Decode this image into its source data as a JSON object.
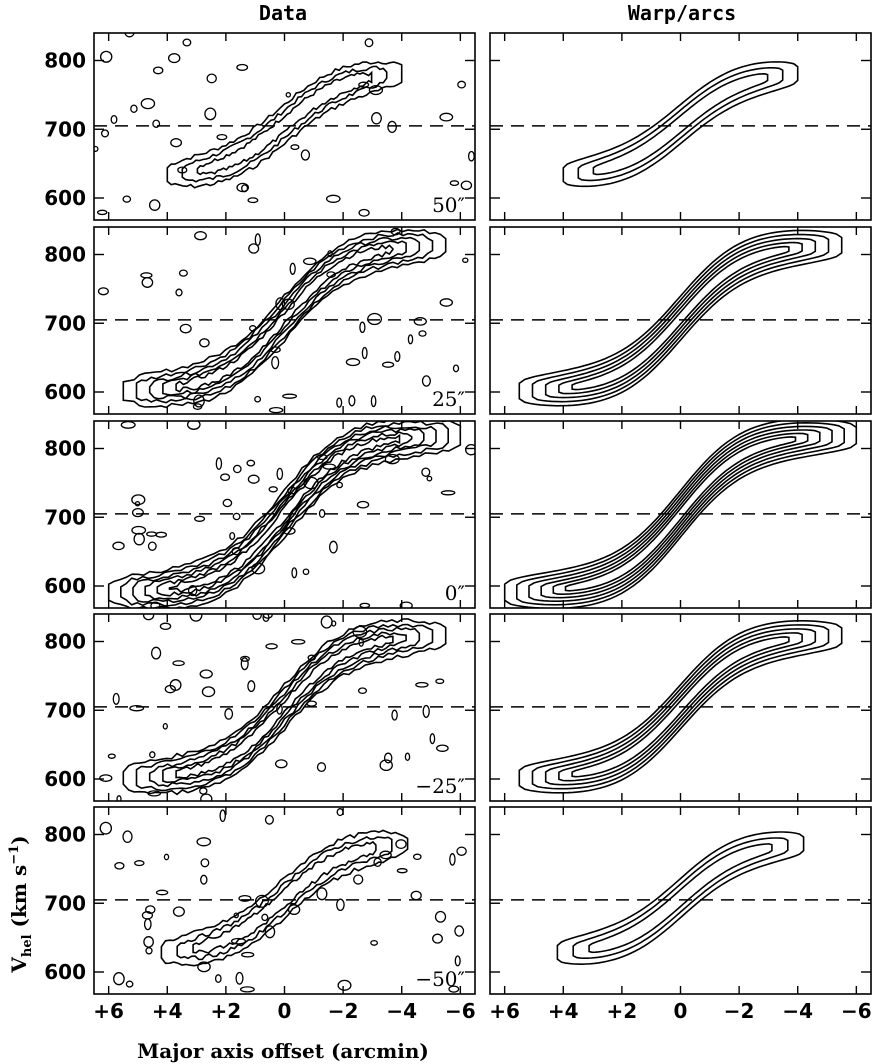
{
  "figure": {
    "column_titles": [
      "Data",
      "Warp/arcs"
    ],
    "xlabel": "Major axis offset (arcmin)",
    "ylabel": {
      "main": "V",
      "sub": "hel",
      "units": " (km s",
      "sup": "−1",
      "close": ")"
    },
    "colors": {
      "ink": "#000000",
      "paper": "#ffffff",
      "greyscale_peak": "#111111"
    }
  },
  "chart_data": {
    "type": "heatmap",
    "description_units": {
      "x": "arcmin",
      "y": "km s^-1"
    },
    "x_ticks": [
      6,
      4,
      2,
      0,
      -2,
      -4,
      -6
    ],
    "x_tick_labels": [
      "+6",
      "+4",
      "+2",
      "0",
      "−2",
      "−4",
      "−6"
    ],
    "xlim": [
      6.5,
      -6.5
    ],
    "y_ticks": [
      600,
      700,
      800
    ],
    "y_tick_labels": [
      "600",
      "700",
      "800"
    ],
    "ylim": [
      568,
      840
    ],
    "systemic_velocity_line": 705,
    "columns": [
      "Data",
      "Warp/arcs"
    ],
    "rows": [
      {
        "offset_label": "50″",
        "amplitude": 0.55,
        "width_scale": 0.8,
        "levels": 3,
        "halfwidth_x": 4.0,
        "vmin": 630,
        "vmax": 785
      },
      {
        "offset_label": "25″",
        "amplitude": 0.75,
        "width_scale": 1.0,
        "levels": 5,
        "halfwidth_x": 5.5,
        "vmin": 600,
        "vmax": 815
      },
      {
        "offset_label": "0″",
        "amplitude": 1.0,
        "width_scale": 1.1,
        "levels": 6,
        "halfwidth_x": 6.0,
        "vmin": 590,
        "vmax": 820
      },
      {
        "offset_label": "−25″",
        "amplitude": 0.75,
        "width_scale": 1.0,
        "levels": 5,
        "halfwidth_x": 5.5,
        "vmin": 600,
        "vmax": 810
      },
      {
        "offset_label": "−50″",
        "amplitude": 0.55,
        "width_scale": 0.8,
        "levels": 3,
        "halfwidth_x": 4.2,
        "vmin": 625,
        "vmax": 790
      }
    ]
  }
}
